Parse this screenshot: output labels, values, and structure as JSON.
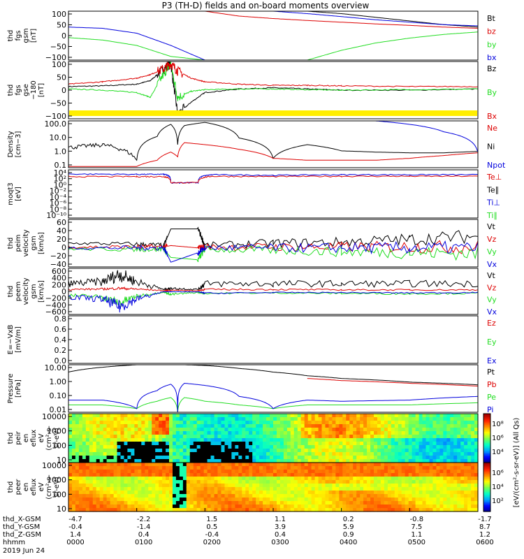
{
  "title": "P3 (TH-D) fields and on-board moments overview",
  "colors": {
    "black": "#000000",
    "red": "#dd0000",
    "green": "#22dd22",
    "blue": "#0000dd",
    "yellow": "#ffee00"
  },
  "chart_data": [
    {
      "type": "line",
      "panel": "fgs-gsm",
      "ylabel": [
        "thd",
        "fgs",
        "gsm",
        "[nT]"
      ],
      "ylim": [
        -100,
        100
      ],
      "ytick_labels": [
        "100",
        "50",
        "0",
        "−50",
        "−100"
      ],
      "legend": [
        {
          "name": "Bt",
          "color": "#000000"
        },
        {
          "name": "bz",
          "color": "#dd0000"
        },
        {
          "name": "by",
          "color": "#22dd22"
        },
        {
          "name": "bx",
          "color": "#0000dd"
        }
      ],
      "x_hours": [
        0,
        0.5,
        1,
        1.5,
        2,
        2.5,
        3,
        3.5,
        4,
        4.5,
        5,
        5.5,
        6
      ],
      "series": [
        {
          "name": "Bt",
          "values": [
            null,
            null,
            null,
            null,
            null,
            null,
            null,
            100,
            90,
            75,
            60,
            45,
            35
          ]
        },
        {
          "name": "bz",
          "values": [
            null,
            null,
            null,
            null,
            100,
            80,
            70,
            62,
            55,
            48,
            42,
            35,
            30
          ]
        },
        {
          "name": "by",
          "values": [
            -8,
            -18,
            -40,
            -85,
            -100,
            null,
            null,
            -100,
            -60,
            -30,
            -10,
            5,
            15
          ]
        },
        {
          "name": "bx",
          "values": [
            35,
            30,
            10,
            -40,
            -100,
            null,
            100,
            90,
            78,
            65,
            55,
            45,
            40
          ]
        }
      ]
    },
    {
      "type": "line",
      "panel": "fgs-gse",
      "ylabel": [
        "thd",
        "fgs",
        "gse",
        "−180",
        "[nT]"
      ],
      "ylim": [
        -130,
        110
      ],
      "ytick_labels": [
        "100",
        "50",
        "0",
        "−50",
        "−100"
      ],
      "legend": [
        {
          "name": "Bz",
          "color": "#000000"
        },
        {
          "name": "By",
          "color": "#22dd22"
        },
        {
          "name": "Bx",
          "color": "#dd0000"
        }
      ],
      "x_hours": [
        0,
        0.5,
        1,
        1.2,
        1.4,
        1.5,
        1.6,
        1.8,
        2,
        2.5,
        3,
        3.5,
        4,
        5,
        6
      ],
      "series": [
        {
          "name": "Bz",
          "values": [
            5,
            8,
            15,
            30,
            80,
            100,
            -110,
            -60,
            -20,
            -5,
            0,
            -5,
            -10,
            -10,
            -5
          ]
        },
        {
          "name": "By",
          "values": [
            -5,
            -10,
            -20,
            -40,
            60,
            100,
            -40,
            -15,
            -8,
            -5,
            -5,
            -8,
            -10,
            -8,
            -5
          ]
        },
        {
          "name": "Bx",
          "values": [
            15,
            25,
            40,
            55,
            80,
            100,
            70,
            40,
            25,
            15,
            10,
            10,
            8,
            5,
            5
          ]
        }
      ]
    },
    {
      "type": "line",
      "panel": "Density",
      "ylabel": [
        "Density",
        "[cm−3]"
      ],
      "scale": "log",
      "ylim": [
        0.1,
        100
      ],
      "ytick_labels": [
        "100.0",
        "10.0",
        "1.0",
        "0.1"
      ],
      "legend": [
        {
          "name": "Ne",
          "color": "#dd0000"
        },
        {
          "name": "Ni",
          "color": "#000000"
        },
        {
          "name": "Npot",
          "color": "#0000dd"
        }
      ],
      "x_hours": [
        0,
        0.5,
        1,
        1.3,
        1.5,
        1.6,
        1.7,
        2,
        2.5,
        3,
        3.5,
        4,
        4.5,
        5,
        5.5,
        6
      ],
      "series": [
        {
          "name": "Ni",
          "values": [
            2,
            3,
            0.3,
            10,
            60,
            3,
            50,
            80,
            8,
            0.4,
            3,
            1.2,
            1.0,
            0.9,
            0.9,
            1.1
          ]
        },
        {
          "name": "Ne",
          "values": [
            0.12,
            0.12,
            0.12,
            0.3,
            1.0,
            0.5,
            4,
            3,
            1.5,
            0.4,
            0.3,
            0.3,
            0.3,
            0.4,
            0.6,
            0.9
          ]
        },
        {
          "name": "Npot",
          "values": [
            null,
            null,
            null,
            null,
            null,
            null,
            null,
            null,
            null,
            null,
            null,
            null,
            100,
            60,
            20,
            1.0
          ]
        }
      ]
    },
    {
      "type": "line",
      "panel": "moqt3",
      "ylabel": [
        "moqt3",
        "[eV]"
      ],
      "scale": "log",
      "ytick_labels": [
        "10⁴",
        "10²",
        "10⁰",
        "10⁻²",
        "10⁻⁴",
        "10⁻⁶",
        "10⁻⁸",
        "10⁻¹⁰"
      ],
      "legend": [
        {
          "name": "Te⊥",
          "color": "#dd0000"
        },
        {
          "name": "Te∥",
          "color": "#000000"
        },
        {
          "name": "Ti⊥",
          "color": "#0000dd"
        },
        {
          "name": "Ti∥",
          "color": "#22dd22"
        }
      ],
      "x_hours": [
        0,
        1,
        1.4,
        1.5,
        1.9,
        2.1,
        3,
        4,
        5,
        6
      ],
      "series": [
        {
          "name": "Ti",
          "values": [
            5000,
            4000,
            4000,
            10,
            10,
            3000,
            2000,
            3000,
            3000,
            3000
          ]
        },
        {
          "name": "Te",
          "values": [
            800,
            800,
            800,
            10,
            10,
            1000,
            800,
            1000,
            1000,
            1000
          ]
        }
      ]
    },
    {
      "type": "line",
      "panel": "peim velocity",
      "ylabel": [
        "thd",
        "peim",
        "velocity",
        "gsm",
        "[km/s]"
      ],
      "ylim": [
        -40,
        60
      ],
      "ytick_labels": [
        "60",
        "40",
        "20",
        "0",
        "−20",
        "−40"
      ],
      "legend": [
        {
          "name": "Vt",
          "color": "#000000"
        },
        {
          "name": "Vz",
          "color": "#dd0000"
        },
        {
          "name": "Vy",
          "color": "#22dd22"
        },
        {
          "name": "Vx",
          "color": "#0000dd"
        }
      ],
      "x_hours": [
        0,
        1,
        1.4,
        1.5,
        1.9,
        2,
        3,
        4,
        5,
        6
      ],
      "series": [
        {
          "name": "Vt",
          "values": [
            10,
            8,
            5,
            40,
            40,
            5,
            10,
            12,
            18,
            25
          ]
        },
        {
          "name": "Vz",
          "values": [
            2,
            2,
            2,
            5,
            0,
            2,
            2,
            2,
            2,
            2
          ]
        },
        {
          "name": "Vy",
          "values": [
            -2,
            -3,
            -3,
            -20,
            -25,
            -3,
            -5,
            -8,
            -10,
            -12
          ]
        },
        {
          "name": "Vx",
          "values": [
            0,
            0,
            0,
            -30,
            -10,
            0,
            0,
            0,
            0,
            0
          ]
        }
      ]
    },
    {
      "type": "line",
      "panel": "peem velocity",
      "ylabel": [
        "thd",
        "peem",
        "velocity",
        "gsm",
        "[km/s]"
      ],
      "ylim": [
        -600,
        600
      ],
      "ytick_labels": [
        "600",
        "400",
        "200",
        "0",
        "−200",
        "−400",
        "−600"
      ],
      "legend": [
        {
          "name": "Vt",
          "color": "#000000"
        },
        {
          "name": "Vz",
          "color": "#dd0000"
        },
        {
          "name": "Vy",
          "color": "#22dd22"
        },
        {
          "name": "Vx",
          "color": "#0000dd"
        }
      ],
      "x_hours": [
        0,
        0.5,
        0.75,
        1,
        1.4,
        1.5,
        1.9,
        2,
        3,
        4,
        5,
        6
      ],
      "series": [
        {
          "name": "Vt",
          "values": [
            200,
            250,
            450,
            250,
            50,
            80,
            50,
            200,
            200,
            200,
            200,
            200
          ]
        },
        {
          "name": "Vz",
          "values": [
            50,
            60,
            80,
            60,
            20,
            30,
            20,
            50,
            50,
            40,
            40,
            40
          ]
        },
        {
          "name": "Vy",
          "values": [
            -100,
            -150,
            -300,
            -120,
            -20,
            -80,
            -30,
            -50,
            -40,
            -50,
            -60,
            -50
          ]
        },
        {
          "name": "Vx",
          "values": [
            -150,
            -200,
            -400,
            -200,
            -10,
            -10,
            -10,
            -50,
            -30,
            -30,
            -40,
            -30
          ]
        }
      ]
    },
    {
      "type": "line",
      "panel": "E=-VxB",
      "ylabel": [
        "E=−VxB",
        "[mV/m]"
      ],
      "ytick_labels": [
        "0.8",
        "0.6",
        "0.4",
        "0.2",
        "0.0"
      ],
      "legend": [
        {
          "name": "Ez",
          "color": "#dd0000"
        },
        {
          "name": "Ey",
          "color": "#22dd22"
        },
        {
          "name": "Ex",
          "color": "#0000dd"
        }
      ],
      "series": []
    },
    {
      "type": "line",
      "panel": "Pressure",
      "ylabel": [
        "Pressure",
        "[nPa]"
      ],
      "scale": "log",
      "ytick_labels": [
        "10.00",
        "1.00",
        "0.10",
        "0.01"
      ],
      "legend": [
        {
          "name": "Pt",
          "color": "#000000"
        },
        {
          "name": "Pb",
          "color": "#dd0000"
        },
        {
          "name": "Pe",
          "color": "#22dd22"
        },
        {
          "name": "Pi",
          "color": "#0000dd"
        }
      ],
      "x_hours": [
        0,
        0.5,
        1,
        1.3,
        1.5,
        1.6,
        1.7,
        2,
        2.5,
        3,
        3.5,
        4,
        5,
        6
      ],
      "series": [
        {
          "name": "Pt",
          "values": [
            10,
            25,
            40,
            40,
            40,
            40,
            40,
            35,
            20,
            10,
            5,
            3,
            1.5,
            0.9
          ]
        },
        {
          "name": "Pb",
          "values": [
            null,
            null,
            null,
            null,
            null,
            null,
            null,
            null,
            null,
            null,
            3,
            2,
            1.2,
            0.7
          ]
        },
        {
          "name": "Pe",
          "values": [
            0.02,
            0.02,
            0.01,
            0.04,
            0.08,
            0.005,
            0.08,
            0.04,
            0.02,
            0.01,
            0.02,
            0.02,
            0.02,
            0.03
          ]
        },
        {
          "name": "Pi",
          "values": [
            0.05,
            0.05,
            0.01,
            0.3,
            1.0,
            0.005,
            1.2,
            0.8,
            0.1,
            0.01,
            0.05,
            0.04,
            0.05,
            0.1
          ]
        }
      ]
    },
    {
      "type": "heatmap",
      "panel": "peir en eflux",
      "ylabel": [
        "thd",
        "peir",
        "en",
        "eflux",
        "eV",
        "(cm²-s-",
        "sr-eV)"
      ],
      "scale": "log",
      "ytick_labels": [
        "10000",
        "1000",
        "100",
        "10"
      ]
    },
    {
      "type": "heatmap",
      "panel": "peer en eflux",
      "ylabel": [
        "thd",
        "peer",
        "en",
        "eflux",
        "eV",
        "(cm²-s-",
        "sr-eV)"
      ],
      "scale": "log",
      "ytick_labels": [
        "10000",
        "1000",
        "100",
        "10"
      ]
    }
  ],
  "colorbar": {
    "label": "[eV/(cm²-s-sr-eV)] (All Qs)",
    "ticks_top": [
      "10⁸",
      "10⁶",
      "10⁴"
    ],
    "ticks_bottom": [
      "10⁶",
      "10⁴",
      "10²"
    ]
  },
  "xaxis": {
    "rows": [
      {
        "label": "thd_X-GSM",
        "values": [
          "-4.7",
          "-2.2",
          "1.5",
          "1.1",
          "0.2",
          "-0.8",
          "-1.7"
        ]
      },
      {
        "label": "thd_Y-GSM",
        "values": [
          "-0.4",
          "-1.4",
          "0.5",
          "3.9",
          "5.9",
          "7.5",
          "8.7"
        ]
      },
      {
        "label": "thd_Z-GSM",
        "values": [
          "1.4",
          "0.4",
          "-0.4",
          "0.4",
          "0.9",
          "1.1",
          "1.2"
        ]
      },
      {
        "label": "hhmm",
        "values": [
          "0000",
          "0100",
          "0200",
          "0300",
          "0400",
          "0500",
          "0600"
        ]
      }
    ],
    "date": "2019 Jun 24"
  }
}
